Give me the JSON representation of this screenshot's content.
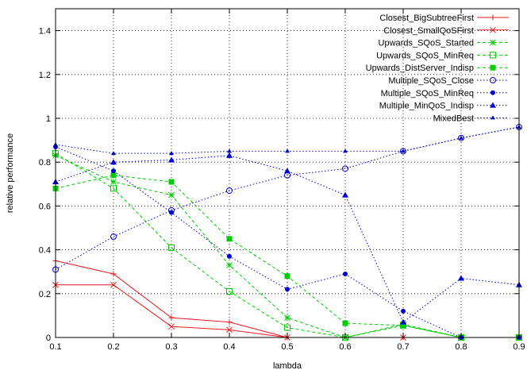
{
  "chart_data": {
    "type": "line",
    "xlabel": "lambda",
    "ylabel": "relative performance",
    "xlim": [
      0.1,
      0.9
    ],
    "ylim": [
      0,
      1.5
    ],
    "grid": true,
    "legend_position": "top-right",
    "x_ticks": [
      "0.1",
      "0.2",
      "0.3",
      "0.4",
      "0.5",
      "0.6",
      "0.7",
      "0.8",
      "0.9"
    ],
    "y_ticks": [
      "0",
      "0.2",
      "0.4",
      "0.6",
      "0.8",
      "1",
      "1.2",
      "1.4"
    ],
    "x": [
      0.1,
      0.2,
      0.3,
      0.4,
      0.5,
      0.6,
      0.7,
      0.8,
      0.9
    ],
    "series": [
      {
        "name": "Closest_BigSubtreeFirst",
        "color": "#e41a1c",
        "dash": "solid",
        "marker": "plus",
        "values": [
          0.35,
          0.29,
          0.09,
          0.07,
          0.0,
          0.0,
          0.0,
          0.0,
          0.0
        ]
      },
      {
        "name": "Closest_SmallQoSFirst",
        "color": "#e41a1c",
        "dash": "solid",
        "marker": "x",
        "values": [
          0.24,
          0.24,
          0.05,
          0.035,
          0.0,
          0.0,
          0.0,
          0.0,
          0.0
        ]
      },
      {
        "name": "Upwards_SQoS_Started",
        "color": "#00cc00",
        "dash": "dashed",
        "marker": "star",
        "values": [
          0.83,
          0.71,
          0.65,
          0.33,
          0.09,
          0.0,
          0.06,
          0.0,
          0.0
        ]
      },
      {
        "name": "Upwards_SQoS_MinReq",
        "color": "#00cc00",
        "dash": "dashed",
        "marker": "box-open",
        "values": [
          0.84,
          0.68,
          0.41,
          0.21,
          0.045,
          0.0,
          0.055,
          0.0,
          0.0
        ]
      },
      {
        "name": "Upwards_DistServer_Indisp",
        "color": "#00cc00",
        "dash": "dashed",
        "marker": "box-filled",
        "values": [
          0.68,
          0.74,
          0.71,
          0.45,
          0.28,
          0.065,
          0.055,
          0.0,
          0.0
        ]
      },
      {
        "name": "Multiple_SQoS_Close",
        "color": "#0000cc",
        "dash": "dotted",
        "marker": "circle-open",
        "values": [
          0.31,
          0.46,
          0.58,
          0.67,
          0.74,
          0.77,
          0.85,
          0.91,
          0.96
        ]
      },
      {
        "name": "Multiple_SQoS_MinReq",
        "color": "#0000cc",
        "dash": "dotted",
        "marker": "circle-filled",
        "values": [
          0.87,
          0.76,
          0.57,
          0.37,
          0.22,
          0.29,
          0.12,
          0.0,
          0.0
        ]
      },
      {
        "name": "Multiple_MinQoS_Indisp",
        "color": "#0000cc",
        "dash": "dotted",
        "marker": "triangle",
        "values": [
          0.71,
          0.8,
          0.81,
          0.83,
          0.76,
          0.65,
          0.07,
          0.27,
          0.24
        ]
      },
      {
        "name": "MixedBest",
        "color": "#0000cc",
        "dash": "dotted",
        "marker": "triangle-small",
        "values": [
          0.88,
          0.84,
          0.84,
          0.85,
          0.85,
          0.85,
          0.85,
          0.91,
          0.96
        ]
      }
    ]
  }
}
